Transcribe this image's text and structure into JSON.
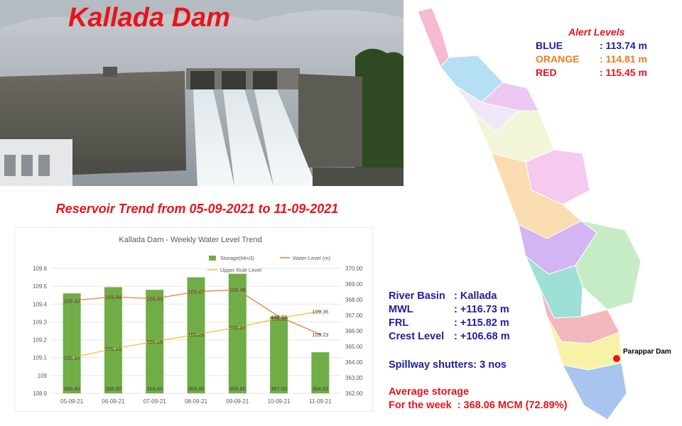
{
  "header": {
    "title": "Kallada Dam"
  },
  "trend_heading": "Reservoir Trend from 05-09-2021 to 11-09-2021",
  "alert_levels": {
    "title": "Alert Levels",
    "items": [
      {
        "label": "BLUE",
        "value": ": 113.74 m",
        "color": "#1f1f9e"
      },
      {
        "label": "ORANGE",
        "value": ": 114.81 m",
        "color": "#f07d1e"
      },
      {
        "label": "RED",
        "value": ": 115.45 m",
        "color": "#e8141a"
      }
    ]
  },
  "dam_info": [
    {
      "key": "River Basin",
      "value": ": Kallada"
    },
    {
      "key": "MWL",
      "value": ": +116.73 m"
    },
    {
      "key": "FRL",
      "value": ": +115.82 m"
    },
    {
      "key": "Crest Level",
      "value": ": +106.68 m"
    }
  ],
  "spillway": "Spillway shutters: 3 nos",
  "average": {
    "line1": "Average storage",
    "line2": "For the week  : 368.06 MCM (72.89%)"
  },
  "map": {
    "marker_label": "Parappar Dam"
  },
  "chart_data": {
    "type": "bar",
    "title": "Kallada Dam - Weekly Water Level Trend",
    "categories": [
      "05-09-21",
      "06-09-21",
      "07-09-21",
      "08-09-21",
      "09-09-21",
      "10-09-21",
      "11-09-21"
    ],
    "left_axis": {
      "ylim": [
        108.9,
        109.6
      ],
      "ticks": [
        "108.9",
        "109",
        "109.1",
        "109.2",
        "109.3",
        "109.4",
        "109.5",
        "109.6"
      ]
    },
    "right_axis": {
      "ylim": [
        362,
        370
      ],
      "ticks": [
        "362.00",
        "363.00",
        "364.00",
        "365.00",
        "366.00",
        "367.00",
        "368.00",
        "369.00",
        "370.00"
      ]
    },
    "series": [
      {
        "name": "Storage(Mm3)",
        "type": "bar",
        "axis": "left",
        "color": "#70ad47",
        "values": [
          109.46,
          109.495,
          109.48,
          109.55,
          109.57,
          109.33,
          109.13
        ],
        "labels": [
          "368.40",
          "368.80",
          "368.60",
          "369.40",
          "369.60",
          "367.00",
          "364.60"
        ]
      },
      {
        "name": "Water Level (m)",
        "type": "line",
        "axis": "left",
        "color": "#e0853b",
        "values": [
          109.42,
          109.44,
          109.43,
          109.47,
          109.48,
          109.33,
          109.23
        ],
        "labels": [
          "109.42",
          "109.44",
          "109.43",
          "109.47",
          "109.48",
          "109.33",
          "109.23"
        ]
      },
      {
        "name": "Upper Rule Level",
        "type": "line",
        "axis": "left",
        "color": "#f3c12b",
        "values": [
          109.1,
          109.15,
          109.19,
          109.23,
          109.27,
          109.32,
          109.36
        ],
        "labels": [
          "109.10",
          "109.15",
          "109.19",
          "109.23",
          "109.27",
          "109.32",
          "109.36"
        ]
      }
    ],
    "legend": "top-right",
    "grid": true
  }
}
